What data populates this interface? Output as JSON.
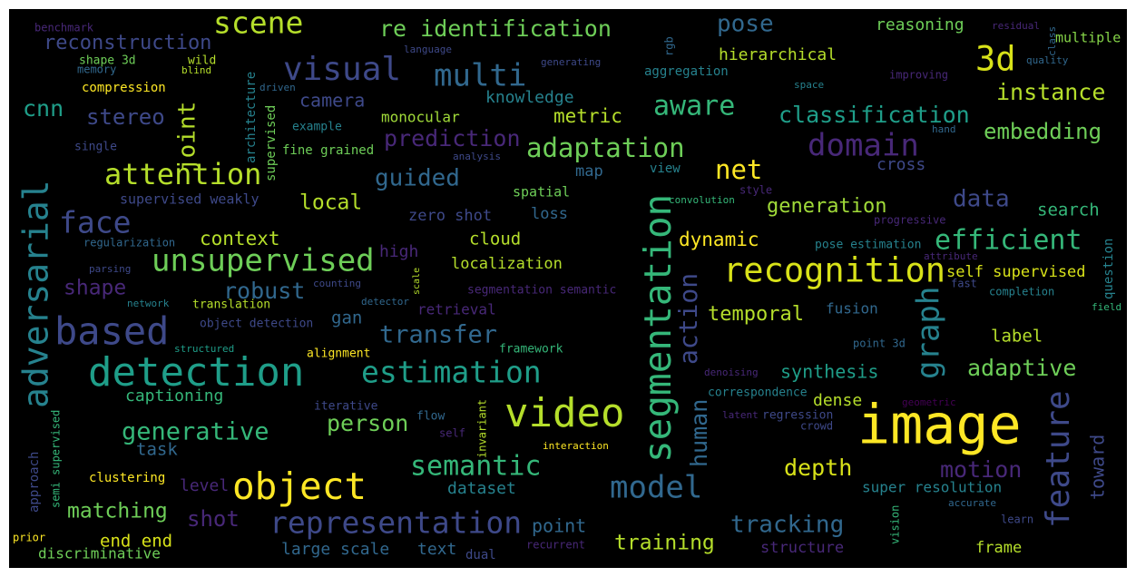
{
  "words": [
    "scene",
    "re identification",
    "pose",
    "reasoning",
    "residual",
    "class",
    "multiple",
    "benchmark",
    "reconstruction",
    "visual",
    "multi",
    "hierarchical",
    "3d",
    "language",
    "rgb",
    "shape 3d",
    "wild",
    "memory",
    "blind",
    "generating",
    "aggregation",
    "quality",
    "improving",
    "space",
    "compression",
    "architecture",
    "driven",
    "supervised",
    "instance",
    "cnn",
    "stereo",
    "joint",
    "camera",
    "knowledge",
    "aware",
    "classification",
    "example",
    "monocular",
    "metric",
    "prediction",
    "hand",
    "embedding",
    "domain",
    "single",
    "fine grained",
    "adaptation",
    "analysis",
    "cross",
    "attention",
    "guided",
    "map",
    "view",
    "net",
    "adversarial",
    "supervised weakly",
    "spatial",
    "style",
    "convolution",
    "local",
    "data",
    "generation",
    "search",
    "zero shot",
    "loss",
    "face",
    "progressive",
    "segmentation",
    "question",
    "context",
    "dynamic",
    "cloud",
    "high",
    "efficient",
    "regularization",
    "pose estimation",
    "attribute",
    "unsupervised",
    "localization",
    "recognition",
    "parsing",
    "scale",
    "graph",
    "self supervised",
    "fast",
    "shape",
    "robust",
    "counting",
    "segmentation semantic",
    "completion",
    "network",
    "translation",
    "detector",
    "retrieval",
    "action",
    "fusion",
    "field",
    "temporal",
    "gan",
    "based",
    "object detection",
    "transfer",
    "label",
    "point 3d",
    "structured",
    "alignment",
    "framework",
    "detection",
    "estimation",
    "adaptive",
    "denoising",
    "synthesis",
    "correspondence",
    "captioning",
    "dense",
    "geometric",
    "iterative",
    "image",
    "video",
    "human",
    "latent",
    "regression",
    "crowd",
    "feature",
    "toward",
    "person",
    "flow",
    "invariant",
    "self",
    "generative",
    "semi supervised",
    "approach",
    "interaction",
    "task",
    "semantic",
    "depth",
    "motion",
    "object",
    "clustering",
    "level",
    "model",
    "dataset",
    "super resolution",
    "vision",
    "accurate",
    "matching",
    "shot",
    "representation",
    "tracking",
    "point",
    "learn",
    "prior",
    "end end",
    "training",
    "recurrent",
    "structure",
    "frame",
    "discriminative",
    "large scale",
    "text",
    "dual"
  ]
}
